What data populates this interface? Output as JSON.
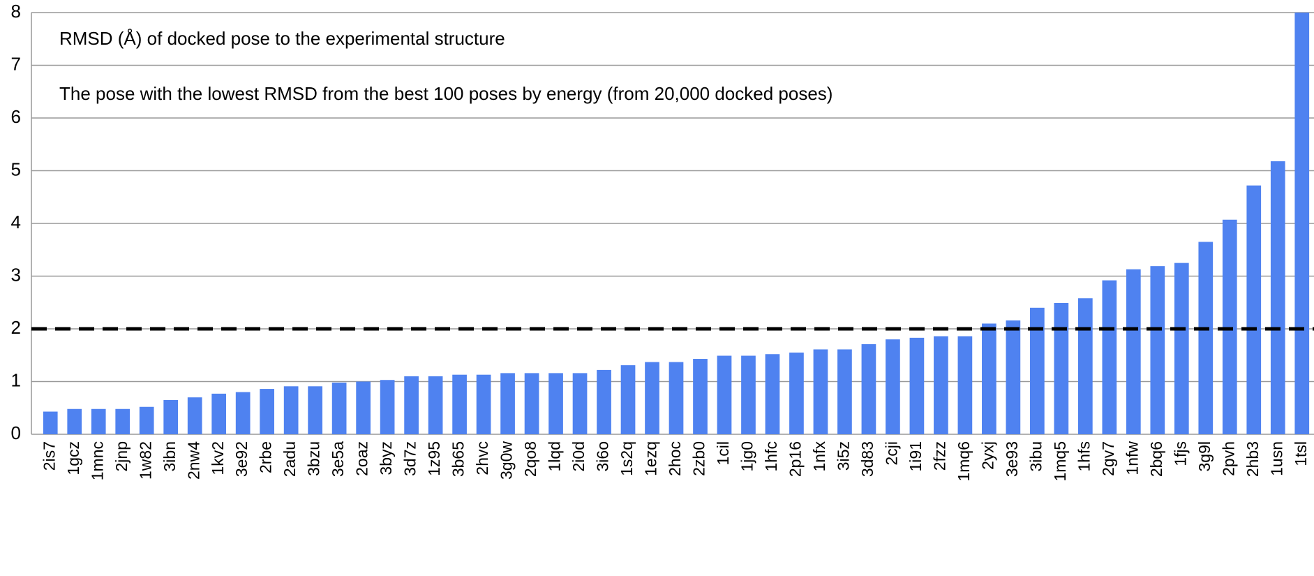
{
  "chart_data": {
    "type": "bar",
    "annotations": [
      "RMSD (Å)  of docked pose to the experimental structure",
      "The  pose with the lowest RMSD from the best 100 poses by energy (from 20,000 docked poses)"
    ],
    "categories": [
      "2is7",
      "1gcz",
      "1mnc",
      "2jnp",
      "1w82",
      "3ibn",
      "2nw4",
      "1kv2",
      "3e92",
      "2rbe",
      "2adu",
      "3bzu",
      "3e5a",
      "2oaz",
      "3byz",
      "3d7z",
      "1z95",
      "3b65",
      "2hvc",
      "3g0w",
      "2qo8",
      "1lqd",
      "2i0d",
      "3i6o",
      "1s2q",
      "1ezq",
      "2hoc",
      "2zb0",
      "1cil",
      "1jg0",
      "1hfc",
      "2p16",
      "1nfx",
      "3i5z",
      "3d83",
      "2cji",
      "1i91",
      "2fzz",
      "1mq6",
      "2yxj",
      "3e93",
      "3ibu",
      "1mq5",
      "1hfs",
      "2gv7",
      "1nfw",
      "2bq6",
      "1fjs",
      "3g9l",
      "2pvh",
      "2hb3",
      "1usn",
      "1tsl"
    ],
    "values": [
      0.43,
      0.48,
      0.48,
      0.48,
      0.52,
      0.65,
      0.7,
      0.77,
      0.8,
      0.86,
      0.91,
      0.91,
      0.98,
      1.0,
      1.03,
      1.1,
      1.1,
      1.13,
      1.13,
      1.16,
      1.16,
      1.16,
      1.16,
      1.22,
      1.31,
      1.37,
      1.37,
      1.43,
      1.49,
      1.49,
      1.52,
      1.55,
      1.61,
      1.61,
      1.71,
      1.8,
      1.83,
      1.86,
      1.86,
      2.1,
      2.16,
      2.4,
      2.49,
      2.58,
      2.92,
      3.13,
      3.19,
      3.25,
      3.65,
      4.07,
      4.72,
      5.18,
      8.0
    ],
    "color": "#4f82f0",
    "reference_line": 2,
    "ylim": [
      0,
      8
    ],
    "yticks": [
      0,
      1,
      2,
      3,
      4,
      5,
      6,
      7,
      8
    ],
    "grid": true
  }
}
